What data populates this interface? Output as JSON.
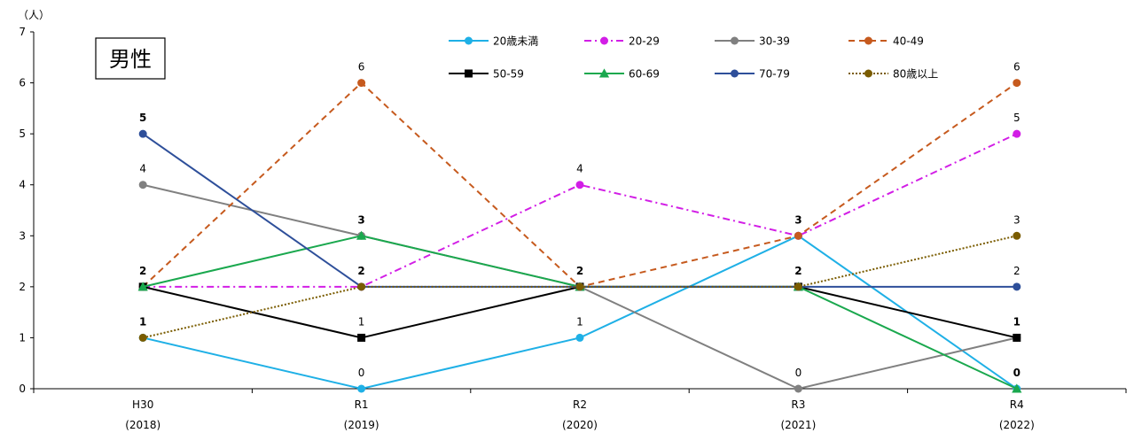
{
  "chart_data": {
    "type": "line",
    "unit_label": "（人）",
    "title_box": "男性",
    "categories": [
      [
        "H30",
        "(2018)"
      ],
      [
        "R1",
        "(2019)"
      ],
      [
        "R2",
        "(2020)"
      ],
      [
        "R3",
        "(2021)"
      ],
      [
        "R4",
        "(2022)"
      ]
    ],
    "ylim": [
      0,
      7
    ],
    "yticks": [
      0,
      1,
      2,
      3,
      4,
      5,
      6,
      7
    ],
    "grid": false,
    "legend_position": "top",
    "series": [
      {
        "name": "20歳未満",
        "values": [
          1,
          0,
          1,
          3,
          0
        ],
        "color": "#1fb0e6",
        "dash": "solid",
        "marker": "circle"
      },
      {
        "name": "20-29",
        "values": [
          2,
          2,
          4,
          3,
          5
        ],
        "color": "#d21ee6",
        "dash": "dashdot",
        "marker": "circle"
      },
      {
        "name": "30-39",
        "values": [
          4,
          3,
          2,
          0,
          1
        ],
        "color": "#808080",
        "dash": "solid",
        "marker": "circle"
      },
      {
        "name": "40-49",
        "values": [
          2,
          6,
          2,
          3,
          6
        ],
        "color": "#c65a1e",
        "dash": "dash",
        "marker": "circle"
      },
      {
        "name": "50-59",
        "values": [
          2,
          1,
          2,
          2,
          1
        ],
        "color": "#000000",
        "dash": "solid",
        "marker": "square"
      },
      {
        "name": "60-69",
        "values": [
          2,
          3,
          2,
          2,
          0
        ],
        "color": "#1aa84e",
        "dash": "solid",
        "marker": "triangle"
      },
      {
        "name": "70-79",
        "values": [
          5,
          2,
          2,
          2,
          2
        ],
        "color": "#2e4f9a",
        "dash": "solid",
        "marker": "circle"
      },
      {
        "name": "80歳以上",
        "values": [
          1,
          2,
          2,
          2,
          3
        ],
        "color": "#7a5c00",
        "dash": "dot",
        "marker": "circle"
      }
    ],
    "data_labels": [
      {
        "cat": 0,
        "value": 5,
        "text": "5",
        "bold": true
      },
      {
        "cat": 0,
        "value": 4,
        "text": "4",
        "bold": false
      },
      {
        "cat": 0,
        "value": 2,
        "text": "2",
        "bold": true
      },
      {
        "cat": 0,
        "value": 1,
        "text": "1",
        "bold": true
      },
      {
        "cat": 1,
        "value": 6,
        "text": "6",
        "bold": false
      },
      {
        "cat": 1,
        "value": 3,
        "text": "3",
        "bold": true
      },
      {
        "cat": 1,
        "value": 2,
        "text": "2",
        "bold": true
      },
      {
        "cat": 1,
        "value": 1,
        "text": "1",
        "bold": false
      },
      {
        "cat": 1,
        "value": 0,
        "text": "0",
        "bold": false
      },
      {
        "cat": 2,
        "value": 4,
        "text": "4",
        "bold": false
      },
      {
        "cat": 2,
        "value": 2,
        "text": "2",
        "bold": true
      },
      {
        "cat": 2,
        "value": 1,
        "text": "1",
        "bold": false
      },
      {
        "cat": 3,
        "value": 3,
        "text": "3",
        "bold": true
      },
      {
        "cat": 3,
        "value": 2,
        "text": "2",
        "bold": true
      },
      {
        "cat": 3,
        "value": 0,
        "text": "0",
        "bold": false
      },
      {
        "cat": 4,
        "value": 6,
        "text": "6",
        "bold": false
      },
      {
        "cat": 4,
        "value": 5,
        "text": "5",
        "bold": false
      },
      {
        "cat": 4,
        "value": 3,
        "text": "3",
        "bold": false
      },
      {
        "cat": 4,
        "value": 2,
        "text": "2",
        "bold": false
      },
      {
        "cat": 4,
        "value": 1,
        "text": "1",
        "bold": true
      },
      {
        "cat": 4,
        "value": 0,
        "text": "0",
        "bold": true
      }
    ]
  }
}
